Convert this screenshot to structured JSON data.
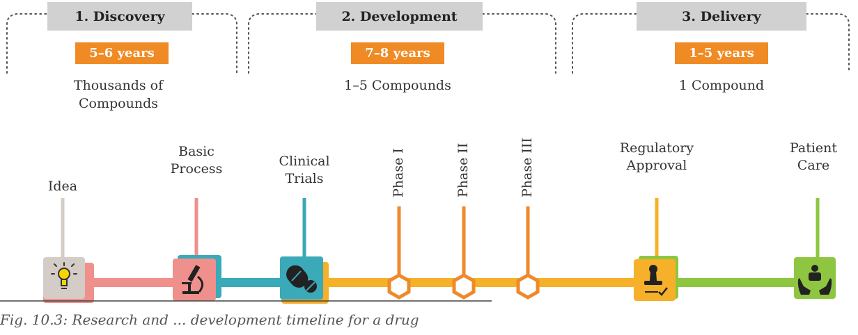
{
  "stages": [
    {
      "title": "1. Discovery",
      "years": "5–6 years",
      "compounds": "Thousands of\nCompounds"
    },
    {
      "title": "2. Development",
      "years": "7–8 years",
      "compounds": "1–5 Compounds"
    },
    {
      "title": "3. Delivery",
      "years": "1–5 years",
      "compounds": "1 Compound"
    }
  ],
  "milestones": {
    "idea": "Idea",
    "basic_process": "Basic\nProcess",
    "clinical_trials": "Clinical\nTrials",
    "phase_1": "Phase I",
    "phase_2": "Phase II",
    "phase_3": "Phase III",
    "regulatory_approval": "Regulatory\nApproval",
    "patient_care": "Patient\nCare"
  },
  "icons": [
    "lightbulb-icon",
    "microscope-icon",
    "pills-icon",
    "stamp-icon",
    "patient-care-icon"
  ],
  "colors": {
    "stage_gray": "#d1d1d1",
    "years_orange": "#f08a24",
    "idea_gray": "#d4ccc6",
    "pink": "#f0908c",
    "teal": "#3aa9b8",
    "yellow": "#f6b02a",
    "phase_orange": "#ee8a2b",
    "green": "#8fc641"
  },
  "caption": "Fig. 10.3: Research and ... development timeline for a drug"
}
